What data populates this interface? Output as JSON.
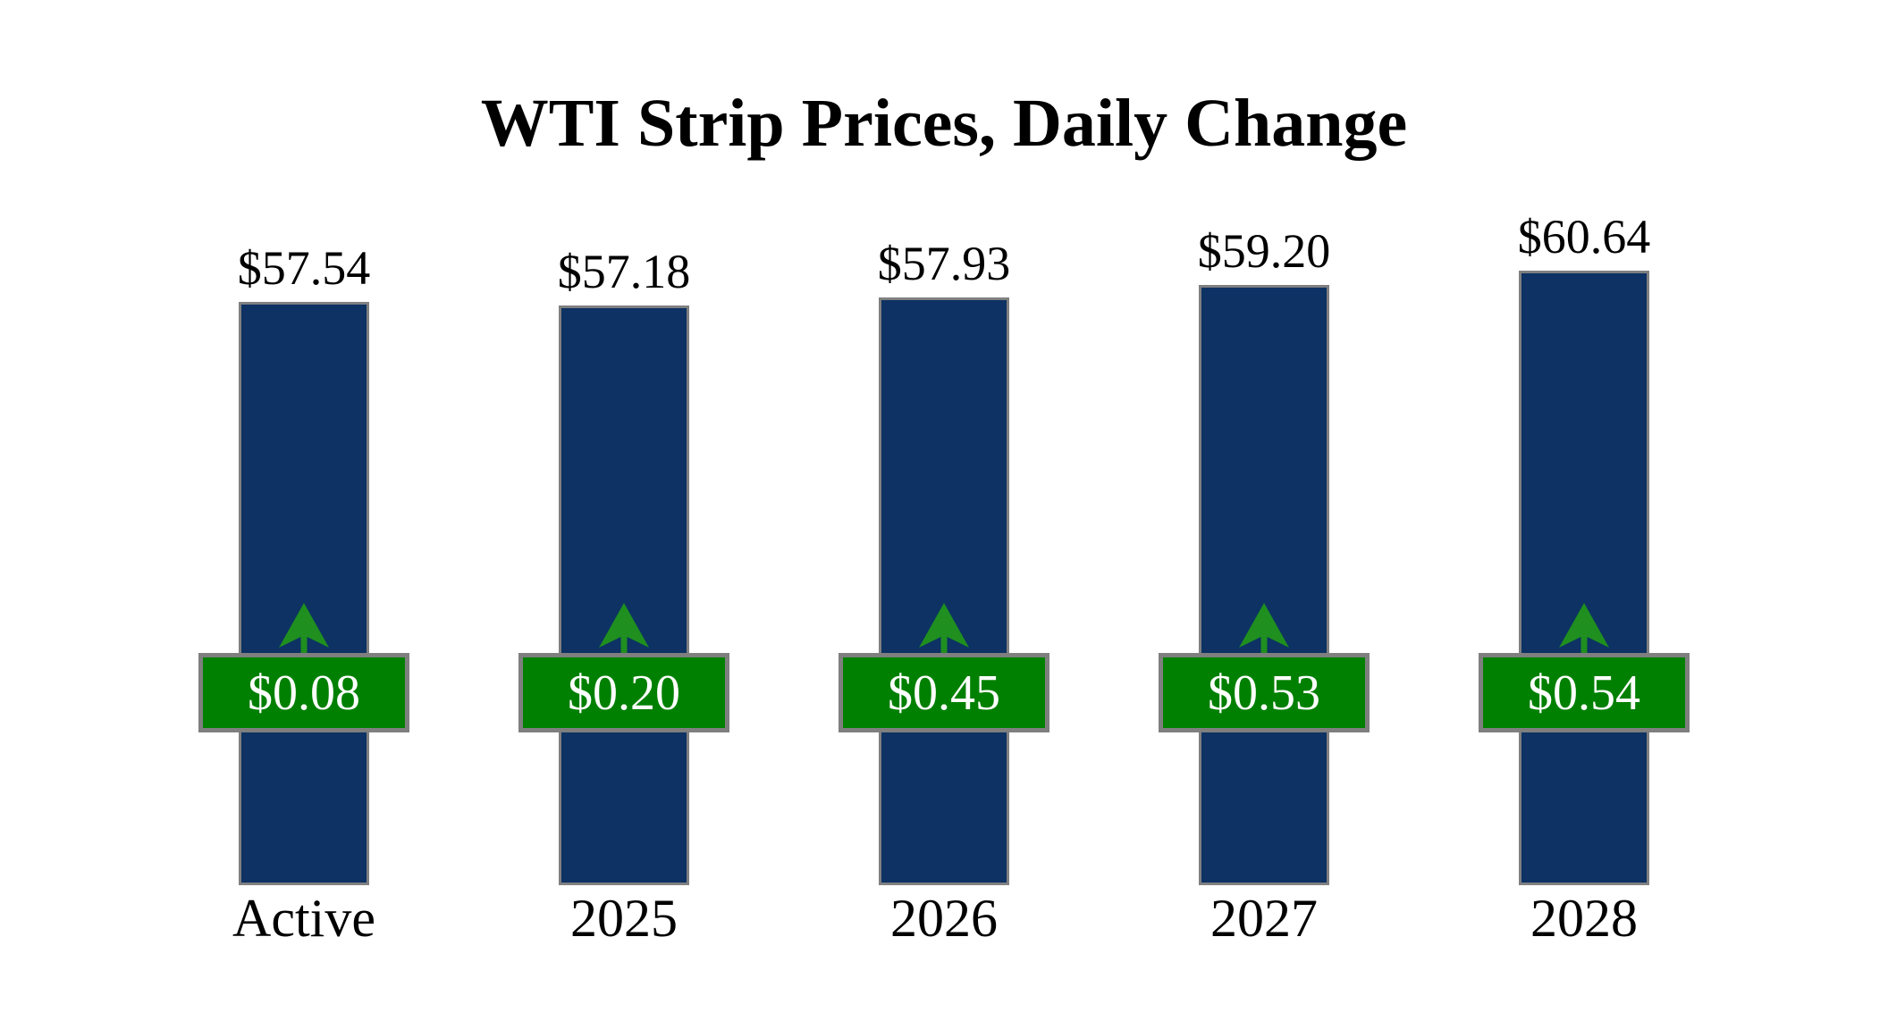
{
  "chart_data": {
    "type": "bar",
    "title": "WTI Strip Prices, Daily Change",
    "categories": [
      "Active",
      "2025",
      "2026",
      "2027",
      "2028"
    ],
    "series": [
      {
        "name": "Price",
        "values": [
          57.54,
          57.18,
          57.93,
          59.2,
          60.64
        ]
      },
      {
        "name": "Daily Change",
        "values": [
          0.08,
          0.2,
          0.45,
          0.53,
          0.54
        ]
      }
    ],
    "bars": [
      {
        "category": "Active",
        "price": 57.54,
        "price_label": "$57.54",
        "change": 0.08,
        "change_label": "$0.08",
        "direction": "up"
      },
      {
        "category": "2025",
        "price": 57.18,
        "price_label": "$57.18",
        "change": 0.2,
        "change_label": "$0.20",
        "direction": "up"
      },
      {
        "category": "2026",
        "price": 57.93,
        "price_label": "$57.93",
        "change": 0.45,
        "change_label": "$0.45",
        "direction": "up"
      },
      {
        "category": "2027",
        "price": 59.2,
        "price_label": "$59.20",
        "change": 0.53,
        "change_label": "$0.53",
        "direction": "up"
      },
      {
        "category": "2028",
        "price": 60.64,
        "price_label": "$60.64",
        "change": 0.54,
        "change_label": "$0.54",
        "direction": "up"
      }
    ],
    "ylim": [
      0,
      101.5
    ],
    "grid": false,
    "axes_visible": false,
    "legend": false,
    "colors": {
      "bar_fill": "#0d3263",
      "bar_border": "#808080",
      "badge_fill": "#008000",
      "badge_border": "#7f7f7f",
      "badge_text": "#ffffff",
      "arrow": "#1f8f1f",
      "title_text": "#000000",
      "label_text": "#000000",
      "background": "#ffffff"
    }
  }
}
